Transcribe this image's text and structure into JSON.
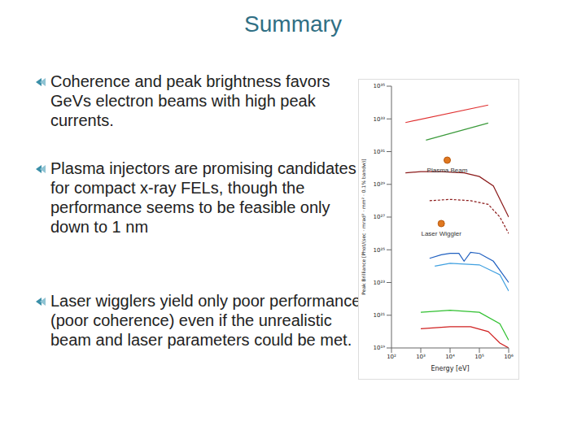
{
  "title": "Summary",
  "bullets": [
    "Coherence and peak brightness favors GeVs electron beams with high peak currents.",
    "Plasma injectors are promising candidates for compact x-ray FELs, though the performance seems to be feasible only down to 1 nm",
    "Laser wigglers yield only poor performance (poor coherence) even if the unrealistic beam and laser parameters could be met."
  ],
  "chart_data": {
    "type": "line",
    "log": true,
    "x_label": "Energy [eV]",
    "y_label": "Peak Brilliance [Phot/(sec · mrad² · mm² · 0.1% bandw)]",
    "xlim": [
      100,
      1000000
    ],
    "xticks": [
      {
        "value": 100,
        "label": "10²"
      },
      {
        "value": 1000,
        "label": "10³"
      },
      {
        "value": 10000,
        "label": "10⁴"
      },
      {
        "value": 100000,
        "label": "10⁵"
      },
      {
        "value": 1000000,
        "label": "10⁶"
      }
    ],
    "ylim": [
      1e+19,
      1e+35
    ],
    "yticks": [
      {
        "value": 1e+19,
        "label": "10¹⁹"
      },
      {
        "value": 1e+21,
        "label": "10²¹"
      },
      {
        "value": 1e+23,
        "label": "10²³"
      },
      {
        "value": 1e+25,
        "label": "10²⁵"
      },
      {
        "value": 1e+27,
        "label": "10²⁷"
      },
      {
        "value": 1e+29,
        "label": "10²⁹"
      },
      {
        "value": 1e+31,
        "label": "10³¹"
      },
      {
        "value": 1e+33,
        "label": "10³³"
      },
      {
        "value": 1e+35,
        "label": "10³⁵"
      }
    ],
    "series": [
      {
        "color": "#e03030",
        "line_style": "solid",
        "x": [
          300,
          200000
        ],
        "values": [
          6e+32,
          7e+33
        ]
      },
      {
        "color": "#3a9a3a",
        "line_style": "solid",
        "x": [
          1500,
          200000
        ],
        "values": [
          5e+31,
          5.6e+32
        ]
      },
      {
        "color": "#8b1a1a",
        "line_style": "solid",
        "x": [
          300,
          1000,
          5000,
          30000,
          100000,
          300000,
          1000000
        ],
        "values": [
          5e+29,
          6e+29,
          6e+29,
          5e+29,
          3e+29,
          8e+28,
          1e+27
        ]
      },
      {
        "color": "#8b1a1a",
        "line_style": "dashed",
        "x": [
          2000,
          10000,
          50000,
          200000,
          500000,
          1000000
        ],
        "values": [
          1e+28,
          1.2e+28,
          1e+28,
          6e+27,
          1e+27,
          1e+26
        ]
      },
      {
        "color": "#2060c0",
        "line_style": "solid",
        "x": [
          2000,
          5000,
          10000,
          20000,
          30000,
          50000,
          100000,
          300000,
          1000000
        ],
        "values": [
          3e+24,
          5e+24,
          6e+24,
          6e+24,
          2e+24,
          7e+24,
          6e+24,
          2e+24,
          1e+23
        ]
      },
      {
        "color": "#40a0e0",
        "line_style": "solid",
        "x": [
          3000,
          10000,
          100000,
          500000,
          1000000
        ],
        "values": [
          1e+24,
          1.5e+24,
          1.2e+24,
          3e+23,
          3e+22
        ]
      },
      {
        "color": "#30c030",
        "line_style": "solid",
        "x": [
          1000,
          10000,
          100000,
          500000,
          1000000
        ],
        "values": [
          1.5e+21,
          2e+21,
          1.5e+21,
          3e+20,
          3e+19
        ]
      },
      {
        "color": "#d02020",
        "line_style": "solid",
        "x": [
          1000,
          10000,
          50000,
          200000,
          500000,
          1000000
        ],
        "values": [
          1.5e+20,
          2e+20,
          2e+20,
          1e+20,
          2e+19,
          1e+19
        ]
      }
    ],
    "annotations": [
      {
        "text": "Plasma Beam",
        "x": 8000,
        "y": 3e+30,
        "color": "#e07820"
      },
      {
        "text": "Laser Wiggler",
        "x": 5000,
        "y": 4e+26,
        "color": "#e07820"
      }
    ]
  }
}
